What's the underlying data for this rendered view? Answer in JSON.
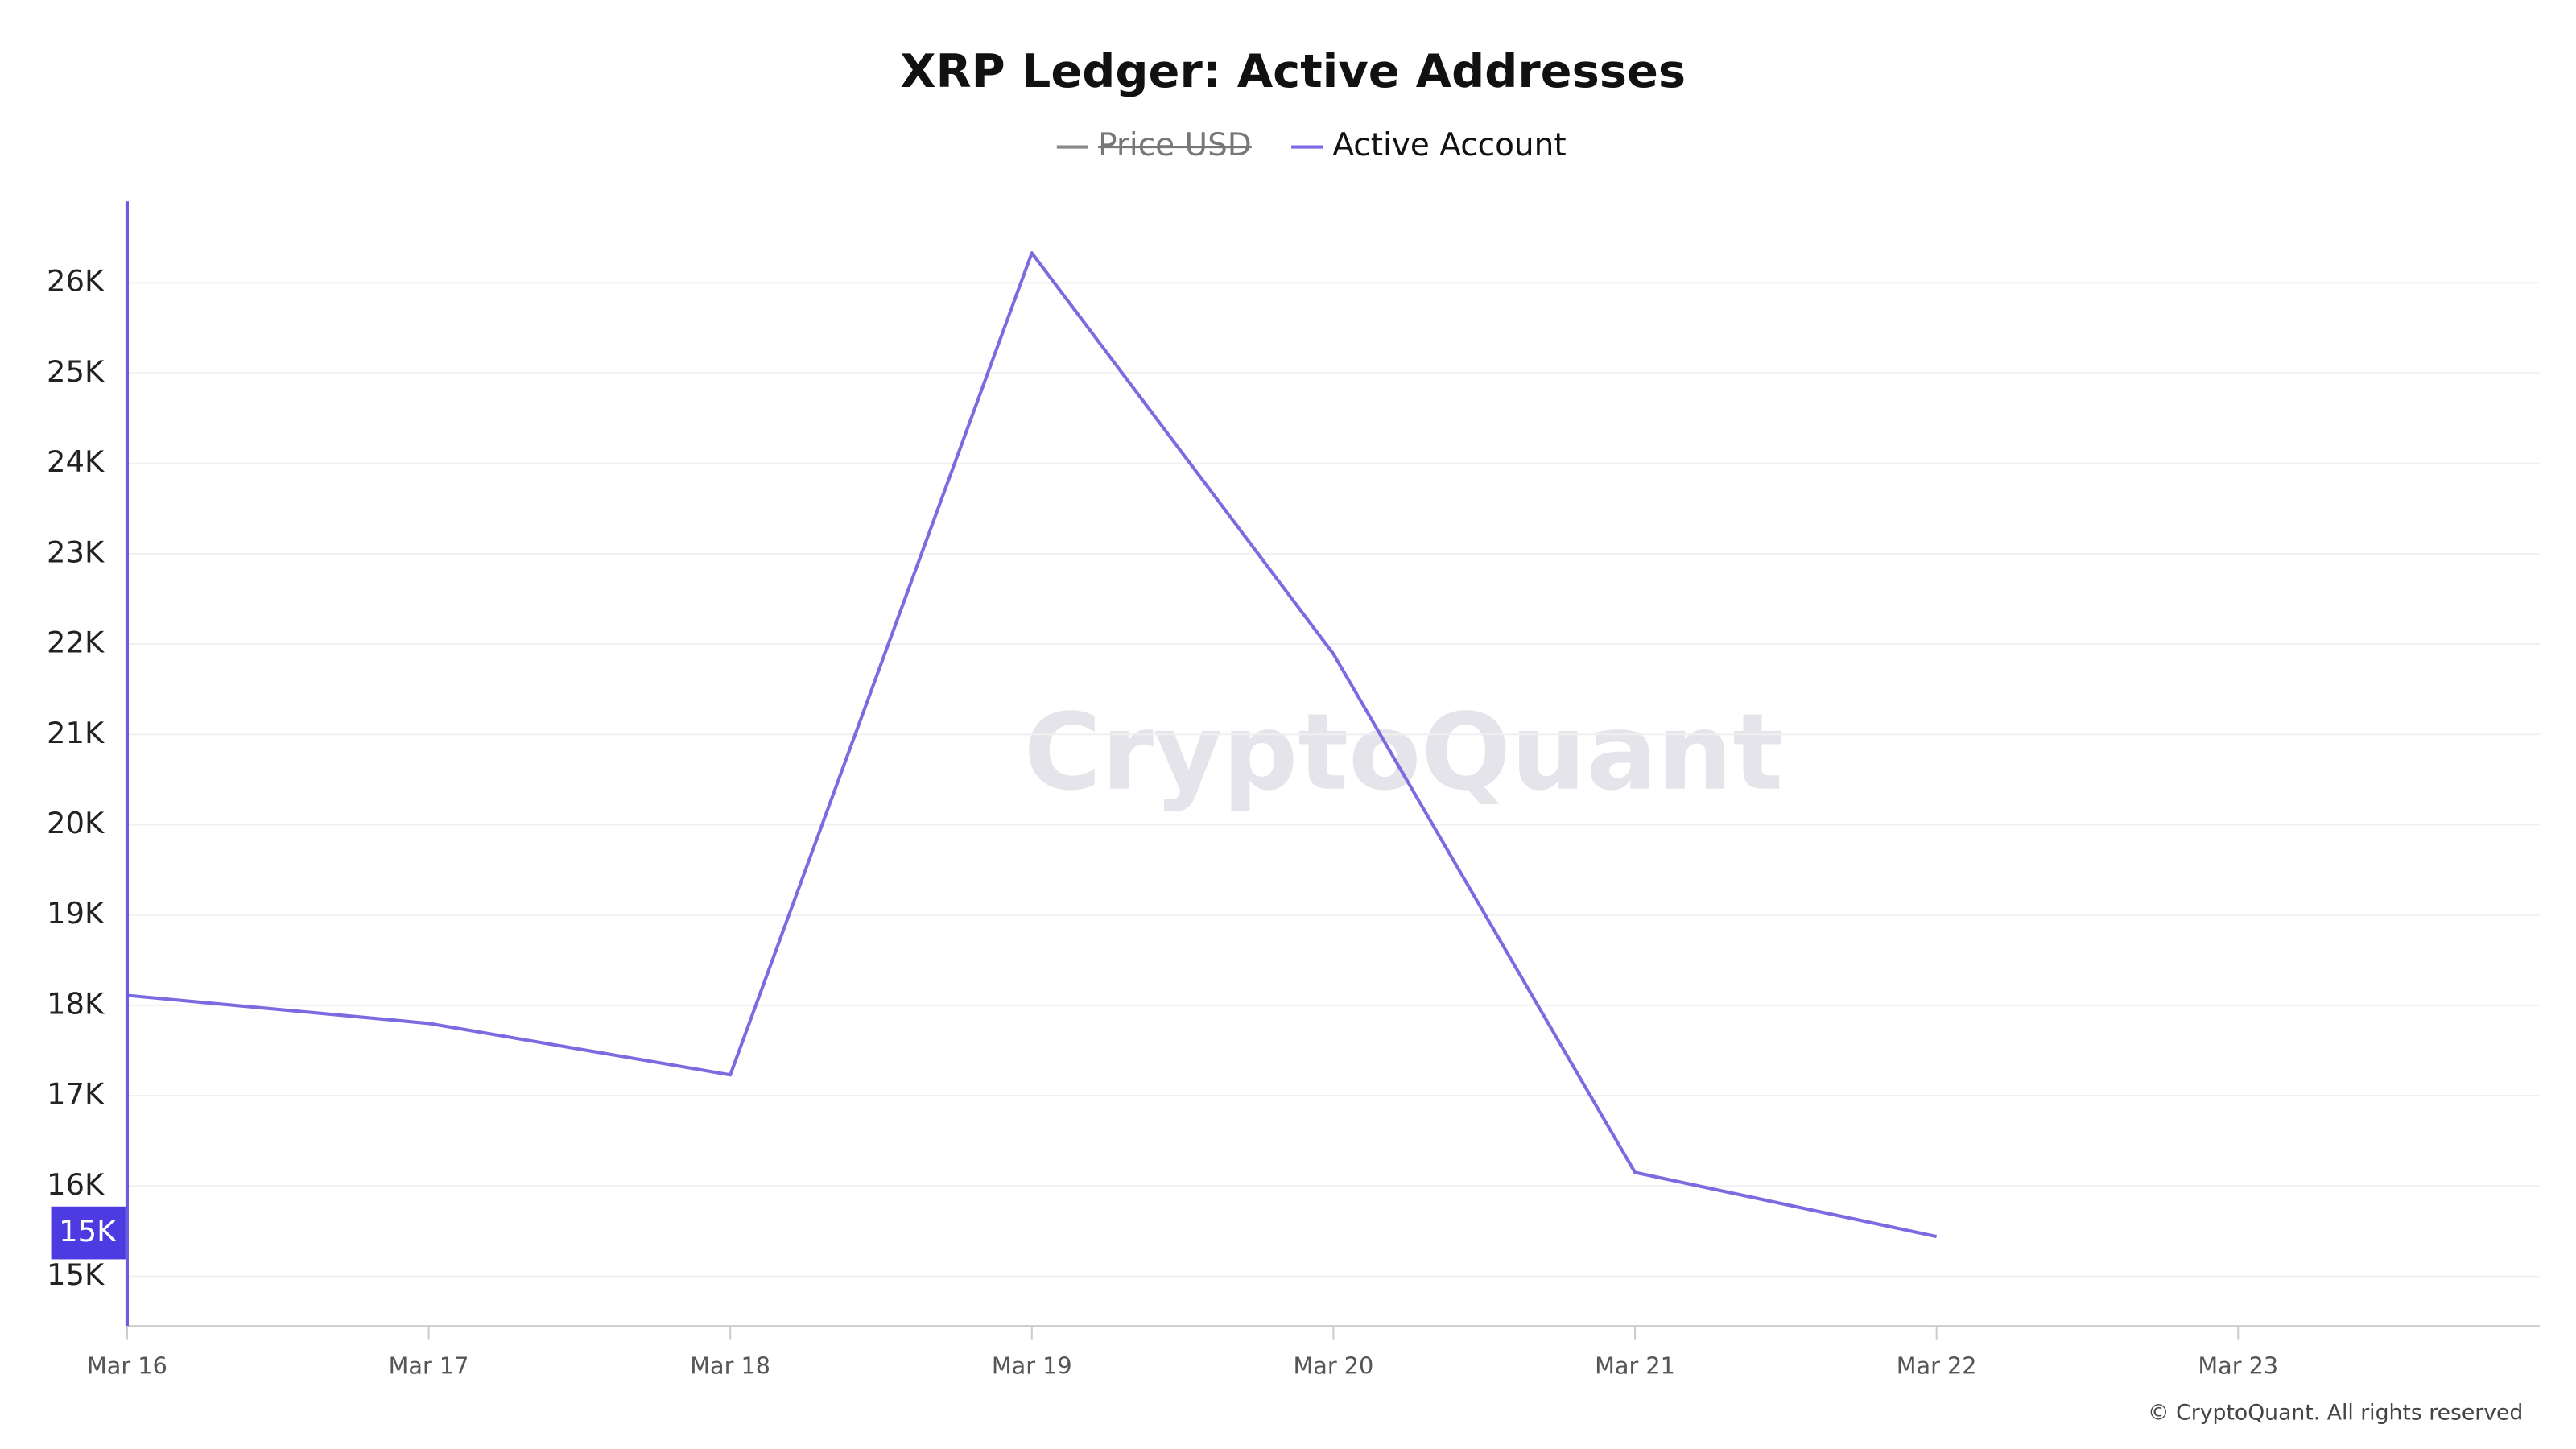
{
  "chart_data": {
    "type": "line",
    "title": "XRP Ledger: Active Addresses",
    "categories": [
      "Mar 16",
      "Mar 17",
      "Mar 18",
      "Mar 19",
      "Mar 20",
      "Mar 21",
      "Mar 22",
      "Mar 23"
    ],
    "series": [
      {
        "name": "Price USD",
        "color": "#888888",
        "visible": false
      },
      {
        "name": "Active Account",
        "color": "#7b6be0",
        "visible": true,
        "values": [
          18110,
          17800,
          17230,
          26330,
          21890,
          16150,
          15440,
          null
        ]
      }
    ],
    "ylim": [
      14450,
      26900
    ],
    "yticks": [
      {
        "value": 15000,
        "label": "15K"
      },
      {
        "value": 16000,
        "label": "16K"
      },
      {
        "value": 17000,
        "label": "17K"
      },
      {
        "value": 18000,
        "label": "18K"
      },
      {
        "value": 19000,
        "label": "19K"
      },
      {
        "value": 20000,
        "label": "20K"
      },
      {
        "value": 21000,
        "label": "21K"
      },
      {
        "value": 22000,
        "label": "22K"
      },
      {
        "value": 23000,
        "label": "23K"
      },
      {
        "value": 24000,
        "label": "24K"
      },
      {
        "value": 25000,
        "label": "25K"
      },
      {
        "value": 26000,
        "label": "26K"
      }
    ],
    "y_cursor": {
      "value": 15480,
      "label": "15K"
    },
    "grid": true,
    "watermark": "CryptoQuant",
    "footer": "© CryptoQuant. All rights reserved"
  }
}
